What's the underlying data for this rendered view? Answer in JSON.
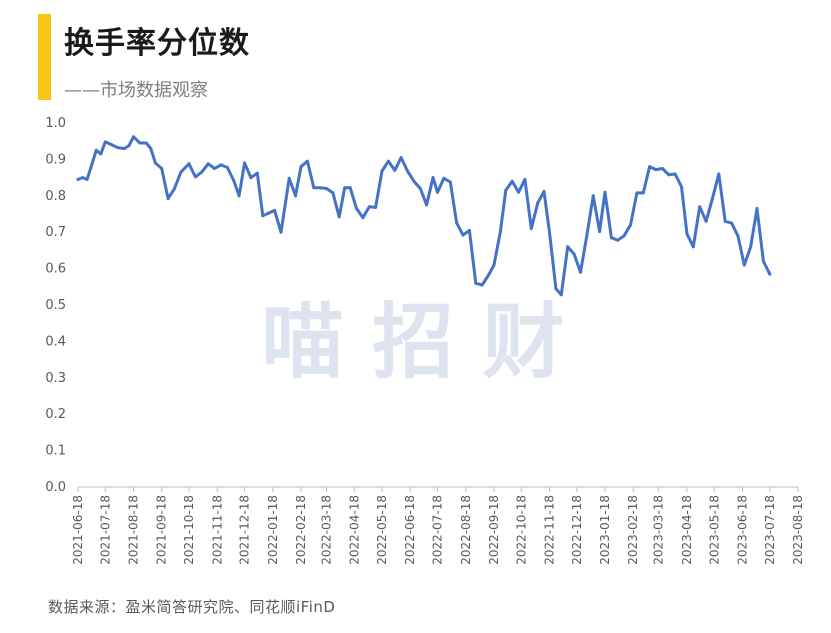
{
  "header": {
    "title": "换手率分位数",
    "subtitle": "——市场数据观察"
  },
  "watermark": "喵 招 财",
  "source": "数据来源：盈米简答研究院、同花顺iFinD",
  "chart_data": {
    "type": "line",
    "title": "换手率分位数",
    "xlabel": "",
    "ylabel": "",
    "ylim": [
      0,
      1.0
    ],
    "yticks": [
      "0.0",
      "0.1",
      "0.2",
      "0.3",
      "0.4",
      "0.5",
      "0.6",
      "0.7",
      "0.8",
      "0.9",
      "1.0"
    ],
    "xtick_labels": [
      "2021-06-18",
      "2021-07-18",
      "2021-08-18",
      "2021-09-18",
      "2021-10-18",
      "2021-11-18",
      "2021-12-18",
      "2022-01-18",
      "2022-02-18",
      "2022-03-18",
      "2022-04-18",
      "2022-05-18",
      "2022-06-18",
      "2022-07-18",
      "2022-08-18",
      "2022-09-18",
      "2022-10-18",
      "2022-11-18",
      "2022-12-18",
      "2023-01-18",
      "2023-02-18",
      "2023-03-18",
      "2023-04-18",
      "2023-05-18",
      "2023-06-18",
      "2023-07-18",
      "2023-08-18"
    ],
    "grid": false,
    "line_color": "#4472c4",
    "series": [
      {
        "name": "",
        "points": [
          [
            "2021-06-18",
            0.845
          ],
          [
            "2021-06-23",
            0.85
          ],
          [
            "2021-06-28",
            0.845
          ],
          [
            "2021-07-03",
            0.885
          ],
          [
            "2021-07-08",
            0.925
          ],
          [
            "2021-07-13",
            0.915
          ],
          [
            "2021-07-18",
            0.948
          ],
          [
            "2021-07-25",
            0.94
          ],
          [
            "2021-08-01",
            0.932
          ],
          [
            "2021-08-08",
            0.93
          ],
          [
            "2021-08-13",
            0.938
          ],
          [
            "2021-08-18",
            0.962
          ],
          [
            "2021-08-25",
            0.945
          ],
          [
            "2021-09-01",
            0.945
          ],
          [
            "2021-09-06",
            0.93
          ],
          [
            "2021-09-11",
            0.89
          ],
          [
            "2021-09-18",
            0.875
          ],
          [
            "2021-09-25",
            0.792
          ],
          [
            "2021-10-02",
            0.82
          ],
          [
            "2021-10-09",
            0.865
          ],
          [
            "2021-10-18",
            0.888
          ],
          [
            "2021-10-25",
            0.852
          ],
          [
            "2021-11-01",
            0.865
          ],
          [
            "2021-11-08",
            0.888
          ],
          [
            "2021-11-15",
            0.875
          ],
          [
            "2021-11-22",
            0.885
          ],
          [
            "2021-11-29",
            0.878
          ],
          [
            "2021-12-06",
            0.842
          ],
          [
            "2021-12-12",
            0.8
          ],
          [
            "2021-12-18",
            0.89
          ],
          [
            "2021-12-25",
            0.85
          ],
          [
            "2022-01-01",
            0.862
          ],
          [
            "2022-01-07",
            0.745
          ],
          [
            "2022-01-13",
            0.752
          ],
          [
            "2022-01-20",
            0.76
          ],
          [
            "2022-01-27",
            0.7
          ],
          [
            "2022-02-05",
            0.848
          ],
          [
            "2022-02-12",
            0.8
          ],
          [
            "2022-02-18",
            0.88
          ],
          [
            "2022-02-25",
            0.895
          ],
          [
            "2022-03-04",
            0.822
          ],
          [
            "2022-03-11",
            0.822
          ],
          [
            "2022-03-18",
            0.82
          ],
          [
            "2022-03-25",
            0.808
          ],
          [
            "2022-04-01",
            0.742
          ],
          [
            "2022-04-07",
            0.822
          ],
          [
            "2022-04-13",
            0.822
          ],
          [
            "2022-04-20",
            0.765
          ],
          [
            "2022-04-27",
            0.74
          ],
          [
            "2022-05-04",
            0.77
          ],
          [
            "2022-05-11",
            0.768
          ],
          [
            "2022-05-18",
            0.868
          ],
          [
            "2022-05-25",
            0.895
          ],
          [
            "2022-06-01",
            0.87
          ],
          [
            "2022-06-08",
            0.905
          ],
          [
            "2022-06-15",
            0.868
          ],
          [
            "2022-06-22",
            0.84
          ],
          [
            "2022-06-29",
            0.82
          ],
          [
            "2022-07-06",
            0.775
          ],
          [
            "2022-07-13",
            0.85
          ],
          [
            "2022-07-18",
            0.81
          ],
          [
            "2022-07-25",
            0.848
          ],
          [
            "2022-08-01",
            0.838
          ],
          [
            "2022-08-08",
            0.725
          ],
          [
            "2022-08-15",
            0.692
          ],
          [
            "2022-08-22",
            0.705
          ],
          [
            "2022-08-29",
            0.56
          ],
          [
            "2022-09-05",
            0.555
          ],
          [
            "2022-09-12",
            0.582
          ],
          [
            "2022-09-18",
            0.61
          ],
          [
            "2022-09-25",
            0.702
          ],
          [
            "2022-10-01",
            0.815
          ],
          [
            "2022-10-08",
            0.84
          ],
          [
            "2022-10-15",
            0.81
          ],
          [
            "2022-10-22",
            0.845
          ],
          [
            "2022-10-29",
            0.71
          ],
          [
            "2022-11-05",
            0.78
          ],
          [
            "2022-11-12",
            0.812
          ],
          [
            "2022-11-18",
            0.7
          ],
          [
            "2022-11-25",
            0.545
          ],
          [
            "2022-12-01",
            0.528
          ],
          [
            "2022-12-08",
            0.66
          ],
          [
            "2022-12-15",
            0.64
          ],
          [
            "2022-12-22",
            0.59
          ],
          [
            "2022-12-29",
            0.69
          ],
          [
            "2023-01-05",
            0.8
          ],
          [
            "2023-01-12",
            0.702
          ],
          [
            "2023-01-18",
            0.81
          ],
          [
            "2023-01-25",
            0.685
          ],
          [
            "2023-02-01",
            0.678
          ],
          [
            "2023-02-08",
            0.69
          ],
          [
            "2023-02-15",
            0.72
          ],
          [
            "2023-02-22",
            0.808
          ],
          [
            "2023-03-01",
            0.808
          ],
          [
            "2023-03-08",
            0.88
          ],
          [
            "2023-03-15",
            0.872
          ],
          [
            "2023-03-22",
            0.875
          ],
          [
            "2023-03-29",
            0.858
          ],
          [
            "2023-04-05",
            0.86
          ],
          [
            "2023-04-12",
            0.825
          ],
          [
            "2023-04-18",
            0.695
          ],
          [
            "2023-04-25",
            0.66
          ],
          [
            "2023-05-02",
            0.77
          ],
          [
            "2023-05-09",
            0.73
          ],
          [
            "2023-05-16",
            0.792
          ],
          [
            "2023-05-23",
            0.86
          ],
          [
            "2023-05-30",
            0.73
          ],
          [
            "2023-06-06",
            0.725
          ],
          [
            "2023-06-13",
            0.69
          ],
          [
            "2023-06-20",
            0.61
          ],
          [
            "2023-06-27",
            0.66
          ],
          [
            "2023-07-04",
            0.765
          ],
          [
            "2023-07-11",
            0.62
          ],
          [
            "2023-07-18",
            0.585
          ]
        ]
      }
    ]
  }
}
